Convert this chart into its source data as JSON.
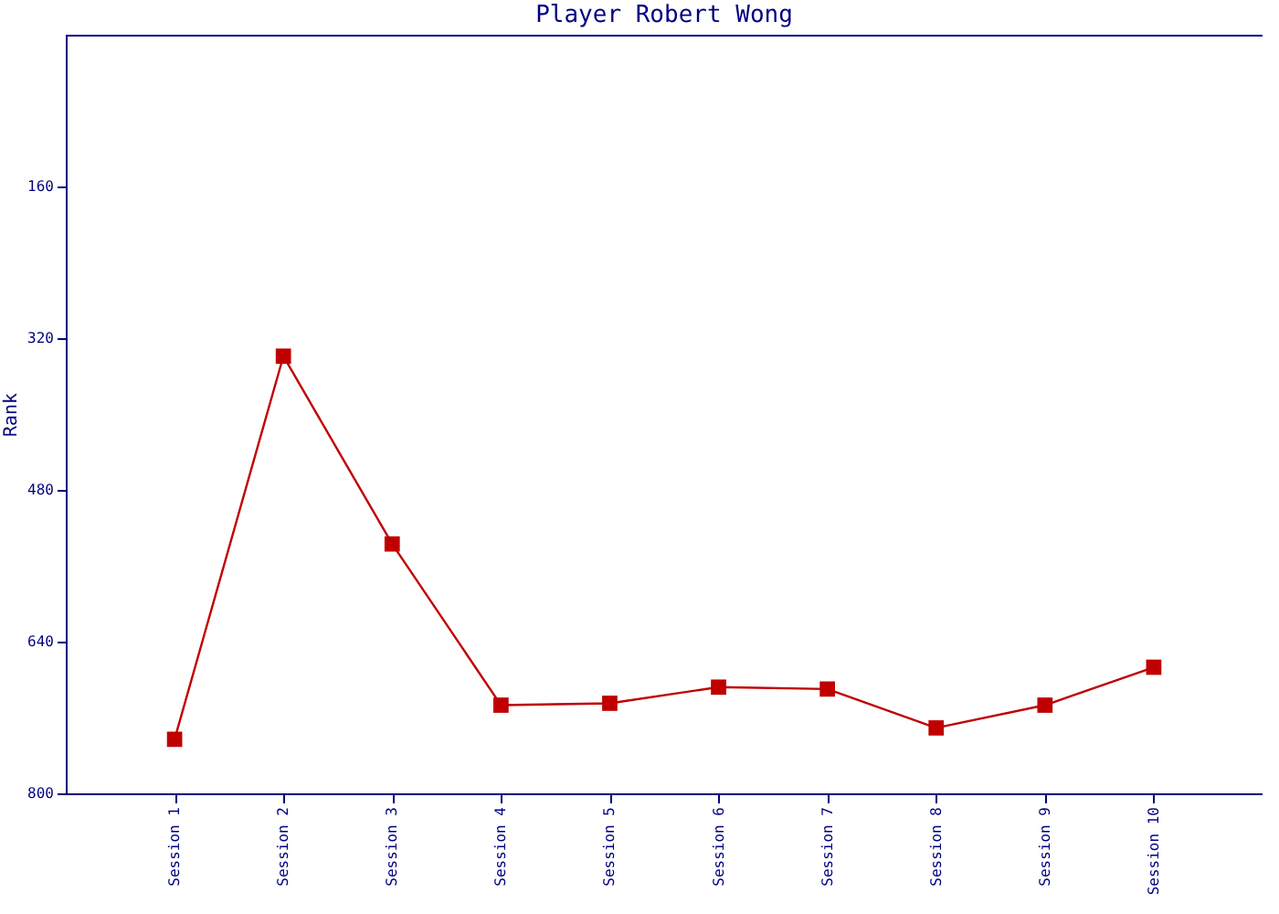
{
  "chart_data": {
    "type": "line",
    "title": "Player Robert Wong",
    "ylabel": "Rank",
    "categories": [
      "Session 1",
      "Session 2",
      "Session 3",
      "Session 4",
      "Session 5",
      "Session 6",
      "Session 7",
      "Session 8",
      "Session 9",
      "Session 10"
    ],
    "series": [
      {
        "color": "#c00000",
        "values": [
          743,
          339,
          537,
          707,
          705,
          688,
          690,
          731,
          707,
          667
        ]
      }
    ],
    "ylim": [
      800,
      0
    ],
    "yticks": [
      160,
      320,
      480,
      640,
      800
    ],
    "grid": false,
    "legend": false,
    "marker": "square",
    "line_style": "solid"
  }
}
